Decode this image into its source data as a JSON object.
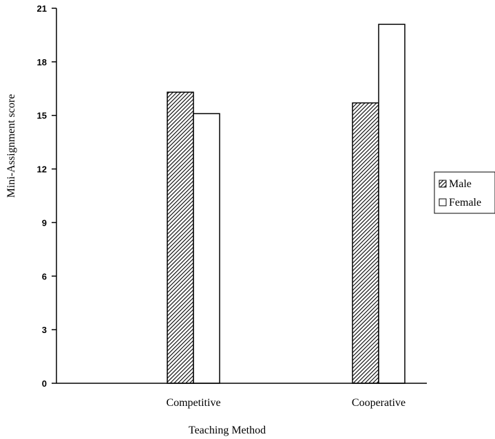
{
  "chart_data": {
    "type": "bar",
    "title": "",
    "xlabel": "Teaching Method",
    "ylabel": "Mini-Assignment score",
    "categories": [
      "Competitive",
      "Cooperative"
    ],
    "series": [
      {
        "name": "Male",
        "values": [
          16.3,
          15.7
        ],
        "fill": "hatched"
      },
      {
        "name": "Female",
        "values": [
          15.1,
          20.1
        ],
        "fill": "#ffffff"
      }
    ],
    "ylim": [
      0,
      21
    ],
    "yticks": [
      0,
      3,
      6,
      9,
      12,
      15,
      18,
      21
    ],
    "grid": false,
    "legend_position": "right"
  }
}
